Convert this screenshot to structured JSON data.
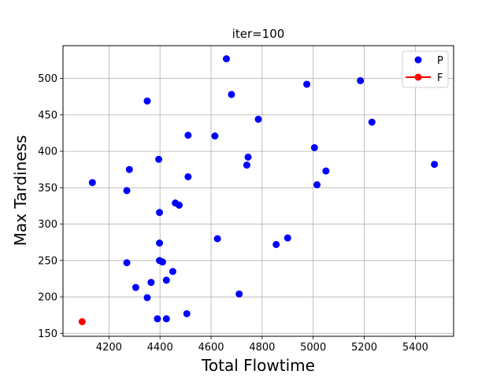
{
  "chart_data": {
    "type": "scatter",
    "title": "iter=100",
    "xlabel": "Total Flowtime",
    "ylabel": "Max Tardiness",
    "xlim": [
      4020,
      5550
    ],
    "ylim": [
      146,
      545
    ],
    "xticks": [
      4200,
      4400,
      4600,
      4800,
      5000,
      5200,
      5400
    ],
    "yticks": [
      150,
      200,
      250,
      300,
      350,
      400,
      450,
      500
    ],
    "grid": true,
    "legend_placement": "top-right",
    "series": [
      {
        "name": "P",
        "color": "#0000ff",
        "marker": "circle",
        "points": [
          {
            "x": 4660,
            "y": 527
          },
          {
            "x": 5185,
            "y": 497
          },
          {
            "x": 4975,
            "y": 492
          },
          {
            "x": 4680,
            "y": 478
          },
          {
            "x": 4350,
            "y": 469
          },
          {
            "x": 4785,
            "y": 444
          },
          {
            "x": 5230,
            "y": 440
          },
          {
            "x": 4510,
            "y": 422
          },
          {
            "x": 4615,
            "y": 421
          },
          {
            "x": 5005,
            "y": 405
          },
          {
            "x": 4745,
            "y": 392
          },
          {
            "x": 4395,
            "y": 389
          },
          {
            "x": 4740,
            "y": 381
          },
          {
            "x": 5475,
            "y": 382
          },
          {
            "x": 4280,
            "y": 375
          },
          {
            "x": 5050,
            "y": 373
          },
          {
            "x": 4510,
            "y": 365
          },
          {
            "x": 4135,
            "y": 357
          },
          {
            "x": 5015,
            "y": 354
          },
          {
            "x": 4270,
            "y": 346
          },
          {
            "x": 4460,
            "y": 329
          },
          {
            "x": 4475,
            "y": 326
          },
          {
            "x": 4398,
            "y": 316
          },
          {
            "x": 4625,
            "y": 280
          },
          {
            "x": 4900,
            "y": 281
          },
          {
            "x": 4398,
            "y": 274
          },
          {
            "x": 4855,
            "y": 272
          },
          {
            "x": 4398,
            "y": 250
          },
          {
            "x": 4410,
            "y": 248
          },
          {
            "x": 4270,
            "y": 247
          },
          {
            "x": 4450,
            "y": 235
          },
          {
            "x": 4425,
            "y": 223
          },
          {
            "x": 4365,
            "y": 220
          },
          {
            "x": 4305,
            "y": 213
          },
          {
            "x": 4710,
            "y": 204
          },
          {
            "x": 4350,
            "y": 199
          },
          {
            "x": 4505,
            "y": 177
          },
          {
            "x": 4390,
            "y": 170
          },
          {
            "x": 4425,
            "y": 170
          }
        ]
      },
      {
        "name": "F",
        "color": "#ff0000",
        "marker": "circle",
        "line": true,
        "points": [
          {
            "x": 4095,
            "y": 166
          }
        ]
      }
    ]
  }
}
